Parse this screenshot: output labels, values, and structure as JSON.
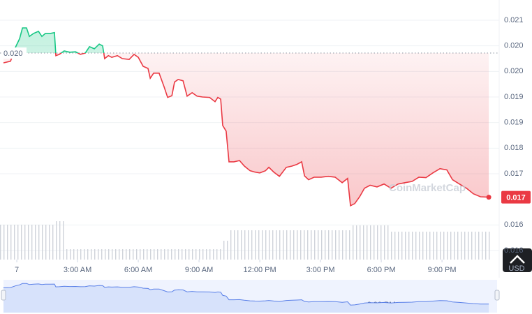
{
  "chart_data": {
    "type": "line",
    "baseline": 0.02023,
    "baseline_label": "0.020",
    "current_price": 0.01685,
    "current_label": "0.017",
    "currency": "USD",
    "watermark": "CoinMarketCap",
    "xlim": [
      -0.83,
      23.79
    ],
    "ylim": [
      0.0156,
      0.021
    ],
    "xticks": [
      {
        "value": 0,
        "label": "7"
      },
      {
        "value": 3,
        "label": "3:00 AM"
      },
      {
        "value": 6,
        "label": "6:00 AM"
      },
      {
        "value": 9,
        "label": "9:00 AM"
      },
      {
        "value": 12,
        "label": "12:00 PM"
      },
      {
        "value": 15,
        "label": "3:00 PM"
      },
      {
        "value": 18,
        "label": "6:00 PM"
      },
      {
        "value": 21,
        "label": "9:00 PM"
      }
    ],
    "yticks": [
      {
        "value": 0.021,
        "label": "0.021"
      },
      {
        "value": 0.0204,
        "label": "0.020"
      },
      {
        "value": 0.0198,
        "label": "0.020"
      },
      {
        "value": 0.0192,
        "label": "0.019"
      },
      {
        "value": 0.0186,
        "label": "0.019"
      },
      {
        "value": 0.018,
        "label": "0.018"
      },
      {
        "value": 0.0174,
        "label": "0.017"
      },
      {
        "value": 0.0162,
        "label": "0.016"
      },
      {
        "value": 0.0156,
        "label": "0.016"
      }
    ],
    "grid": true,
    "up_color": "#16c784",
    "down_color": "#ea3943",
    "x": [
      -0.66,
      -0.31,
      -0.07,
      0.14,
      0.28,
      0.48,
      0.62,
      0.83,
      1.07,
      1.24,
      1.41,
      1.66,
      1.86,
      1.93,
      2.1,
      2.34,
      2.62,
      2.9,
      3.14,
      3.38,
      3.59,
      3.83,
      4.07,
      4.24,
      4.34,
      4.52,
      4.69,
      4.97,
      5.21,
      5.55,
      5.79,
      6.0,
      6.24,
      6.48,
      6.59,
      6.76,
      7.03,
      7.28,
      7.45,
      7.66,
      7.79,
      7.97,
      8.21,
      8.41,
      8.66,
      8.9,
      9.17,
      9.52,
      9.79,
      9.93,
      10.07,
      10.17,
      10.34,
      10.48,
      10.72,
      11.0,
      11.24,
      11.52,
      11.76,
      12.0,
      12.28,
      12.45,
      12.69,
      12.97,
      13.31,
      13.59,
      13.83,
      14.07,
      14.21,
      14.41,
      14.69,
      15.03,
      15.38,
      15.72,
      16.07,
      16.34,
      16.48,
      16.69,
      16.93,
      17.17,
      17.45,
      17.79,
      18.14,
      18.48,
      18.83,
      19.17,
      19.52,
      19.86,
      20.21,
      20.55,
      20.9,
      21.24,
      21.52,
      21.86,
      22.21,
      22.55,
      22.9,
      23.31
    ],
    "values": [
      0.02,
      0.02004,
      0.02036,
      0.02057,
      0.02082,
      0.02082,
      0.02062,
      0.02069,
      0.02074,
      0.02062,
      0.02069,
      0.02069,
      0.02071,
      0.02017,
      0.0202,
      0.02028,
      0.02025,
      0.02026,
      0.0202,
      0.02023,
      0.02038,
      0.02033,
      0.02044,
      0.0204,
      0.0201,
      0.02017,
      0.02013,
      0.02017,
      0.0201,
      0.02008,
      0.0202,
      0.02013,
      0.01992,
      0.01987,
      0.01964,
      0.01976,
      0.01976,
      0.01943,
      0.01919,
      0.01923,
      0.01955,
      0.01961,
      0.01958,
      0.01922,
      0.0193,
      0.01922,
      0.0192,
      0.01919,
      0.01909,
      0.01919,
      0.01915,
      0.01853,
      0.0184,
      0.01768,
      0.01768,
      0.01771,
      0.01758,
      0.01747,
      0.01744,
      0.01742,
      0.01747,
      0.01755,
      0.01744,
      0.01734,
      0.01755,
      0.01758,
      0.01762,
      0.01768,
      0.01735,
      0.01726,
      0.01732,
      0.01732,
      0.01734,
      0.01732,
      0.01719,
      0.01729,
      0.01665,
      0.0167,
      0.01686,
      0.01706,
      0.01713,
      0.01709,
      0.01716,
      0.01706,
      0.01716,
      0.01719,
      0.01722,
      0.01732,
      0.01731,
      0.01742,
      0.01752,
      0.01749,
      0.01726,
      0.01716,
      0.01706,
      0.01693,
      0.01686,
      0.01685
    ],
    "volume": {
      "ylim": [
        0,
        60
      ],
      "values": [
        50,
        50,
        50,
        50,
        50,
        50,
        50,
        50,
        50,
        50,
        50,
        50,
        50,
        50,
        50,
        50,
        55,
        55,
        55,
        15,
        15,
        15,
        15,
        15,
        15,
        15,
        15,
        15,
        15,
        15,
        15,
        15,
        15,
        15,
        15,
        15,
        15,
        15,
        15,
        15,
        15,
        15,
        15,
        15,
        15,
        15,
        15,
        15,
        15,
        15,
        15,
        15,
        15,
        15,
        15,
        15,
        15,
        15,
        15,
        15,
        15,
        15,
        15,
        15,
        27,
        27,
        42,
        42,
        42,
        42,
        42,
        42,
        42,
        42,
        42,
        42,
        42,
        42,
        42,
        42,
        42,
        42,
        42,
        42,
        42,
        42,
        42,
        42,
        42,
        42,
        42,
        42,
        42,
        42,
        42,
        42,
        42,
        42,
        42,
        42,
        42,
        49,
        49,
        49,
        49,
        49,
        49,
        49,
        49,
        49,
        49,
        49,
        40,
        40,
        40,
        40,
        40,
        40,
        40,
        40,
        40,
        40,
        40,
        40,
        40,
        40,
        40,
        40,
        40,
        40,
        40,
        40,
        40,
        40,
        40,
        40,
        40,
        40,
        40,
        40,
        40
      ]
    }
  }
}
